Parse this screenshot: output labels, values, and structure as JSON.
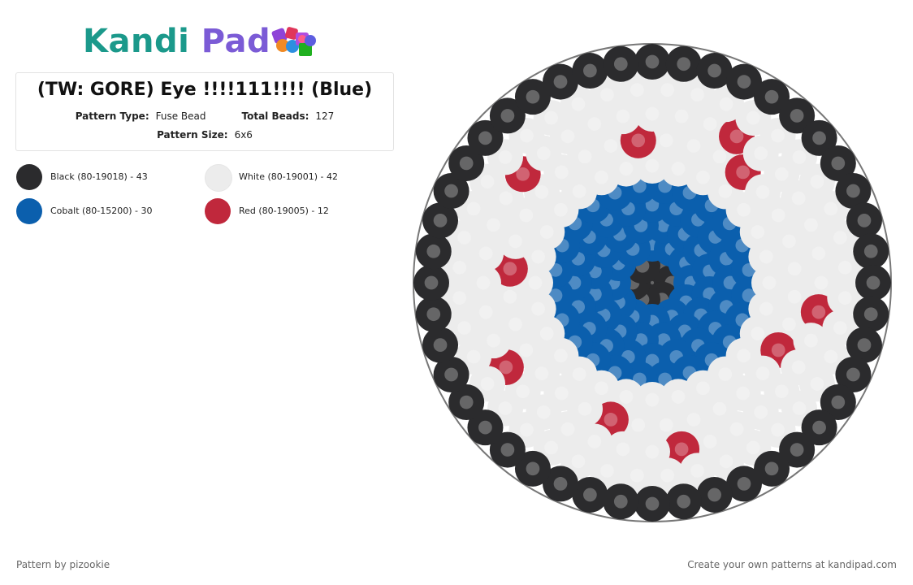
{
  "logo": {
    "text_part1": "Kandi",
    "text_part2": " Pad"
  },
  "pattern": {
    "title": "(TW: GORE) Eye !!!!111!!!! (Blue)",
    "type_label": "Pattern Type:",
    "type_value": "Fuse Bead",
    "beads_label": "Total Beads:",
    "beads_value": "127",
    "size_label": "Pattern Size:",
    "size_value": "6x6"
  },
  "colors": {
    "black": "#2b2b2d",
    "white": "#ececec",
    "cobalt": "#0b5fad",
    "red": "#c0283c",
    "outline": "#777777"
  },
  "legend": [
    {
      "key": "black",
      "label": "Black (80-19018) - 43"
    },
    {
      "key": "white",
      "label": "White (80-19001) - 42"
    },
    {
      "key": "cobalt",
      "label": "Cobalt (80-15200) - 30"
    },
    {
      "key": "red",
      "label": "Red (80-19005) - 12"
    }
  ],
  "footer": {
    "author": "Pattern by pizookie",
    "cta": "Create your own patterns at kandipad.com"
  }
}
